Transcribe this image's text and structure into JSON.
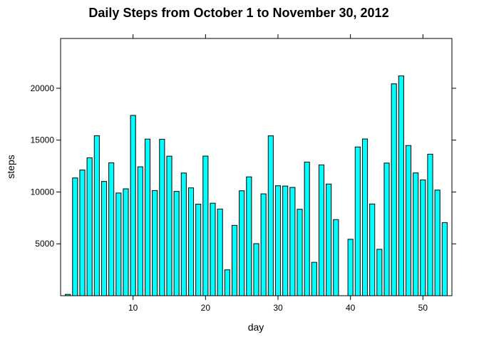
{
  "chart_data": {
    "type": "bar",
    "title": "Daily Steps from October 1 to November 30, 2012",
    "xlabel": "day",
    "ylabel": "steps",
    "xlim": [
      0,
      54
    ],
    "ylim": [
      0,
      24800
    ],
    "x_ticks": [
      10,
      20,
      30,
      40,
      50
    ],
    "y_ticks": [
      5000,
      10000,
      15000,
      20000
    ],
    "grid": false,
    "bar_color": "#00FFFF",
    "bar_edge_color": "#000000",
    "x": [
      1,
      2,
      3,
      4,
      5,
      6,
      7,
      8,
      9,
      10,
      11,
      12,
      13,
      14,
      15,
      16,
      17,
      18,
      19,
      20,
      21,
      22,
      23,
      24,
      25,
      26,
      27,
      28,
      29,
      30,
      31,
      32,
      33,
      34,
      35,
      36,
      37,
      38,
      39,
      40,
      41,
      42,
      43,
      44,
      45,
      46,
      47,
      48,
      49,
      50,
      51,
      52,
      53
    ],
    "values": [
      126,
      11352,
      12116,
      13294,
      15420,
      11015,
      12811,
      9900,
      10304,
      17382,
      12426,
      15098,
      10139,
      15084,
      13452,
      10056,
      11829,
      10395,
      8821,
      13460,
      8918,
      8355,
      2492,
      6778,
      10119,
      11458,
      5018,
      9819,
      15414,
      10600,
      10571,
      10439,
      8334,
      12883,
      3219,
      12608,
      10765,
      7336,
      0,
      5441,
      14339,
      15110,
      8841,
      4472,
      12787,
      20427,
      21194,
      14478,
      11834,
      11162,
      13646,
      10183,
      7047
    ]
  }
}
